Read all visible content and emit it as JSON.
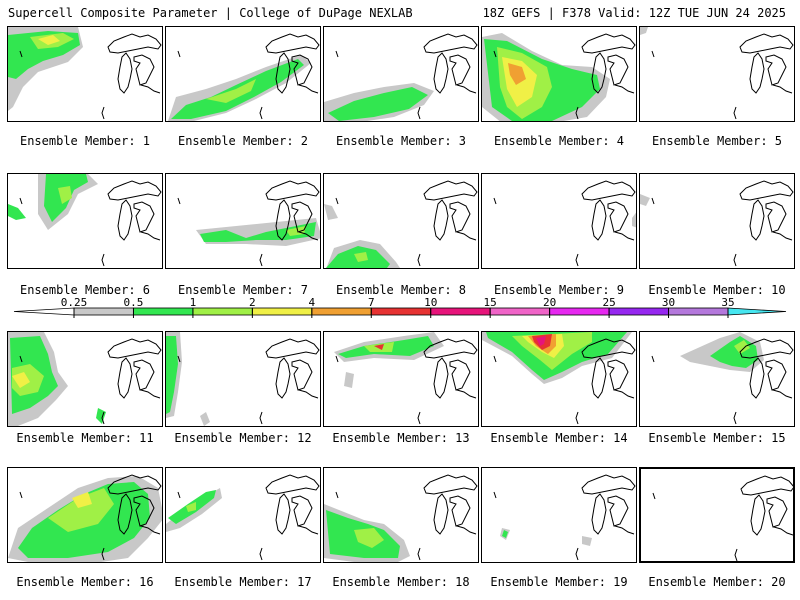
{
  "header": {
    "left": "Supercell Composite Parameter | College of DuPage NEXLAB",
    "right": "18Z GEFS | F378 Valid: 12Z TUE JUN 24 2025"
  },
  "colorbar": {
    "ticks": [
      "0.25",
      "0.5",
      "1",
      "2",
      "4",
      "7",
      "10",
      "15",
      "20",
      "25",
      "30",
      "35"
    ],
    "colors": [
      "#c8c8c8",
      "#32e650",
      "#a0f046",
      "#f0f046",
      "#f0a032",
      "#e63232",
      "#e6147a",
      "#f064c8",
      "#e628f0",
      "#9628f0",
      "#b478dc",
      "#46e6f0"
    ]
  },
  "members": [
    {
      "label": "Ensemble Member: 1"
    },
    {
      "label": "Ensemble Member: 2"
    },
    {
      "label": "Ensemble Member: 3"
    },
    {
      "label": "Ensemble Member: 4"
    },
    {
      "label": "Ensemble Member: 5"
    },
    {
      "label": "Ensemble Member: 6"
    },
    {
      "label": "Ensemble Member: 7"
    },
    {
      "label": "Ensemble Member: 8"
    },
    {
      "label": "Ensemble Member: 9"
    },
    {
      "label": "Ensemble Member: 10"
    },
    {
      "label": "Ensemble Member: 11"
    },
    {
      "label": "Ensemble Member: 12"
    },
    {
      "label": "Ensemble Member: 13"
    },
    {
      "label": "Ensemble Member: 14"
    },
    {
      "label": "Ensemble Member: 15"
    },
    {
      "label": "Ensemble Member: 16"
    },
    {
      "label": "Ensemble Member: 17"
    },
    {
      "label": "Ensemble Member: 18"
    },
    {
      "label": "Ensemble Member: 19"
    },
    {
      "label": "Ensemble Member: 20"
    }
  ]
}
